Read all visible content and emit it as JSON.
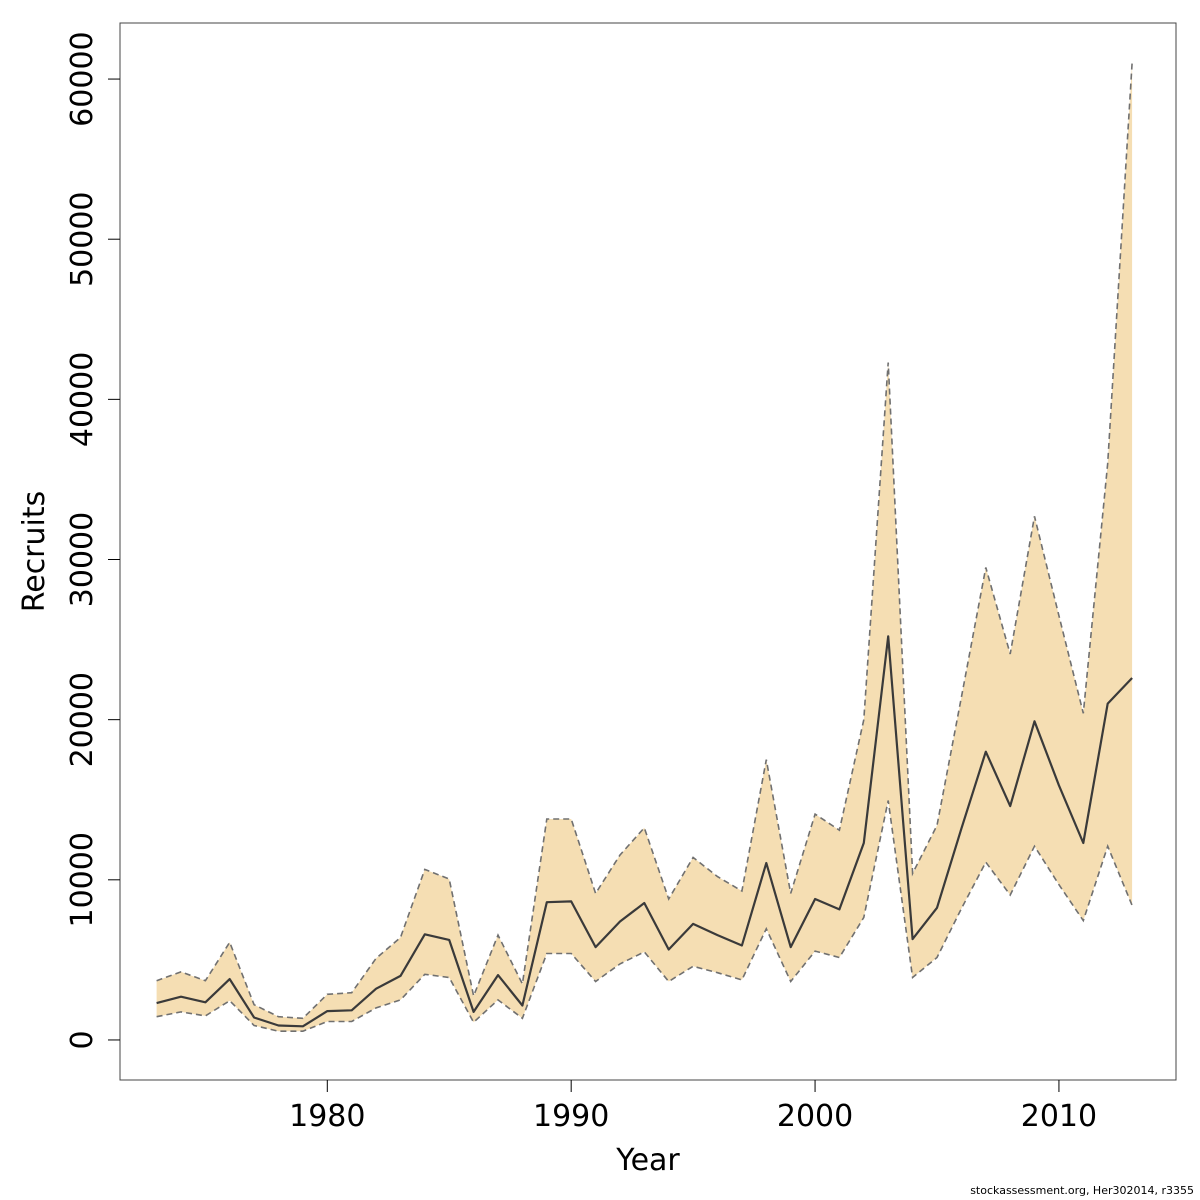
{
  "chart_data": {
    "type": "area",
    "title": "",
    "xlabel": "Year",
    "ylabel": "Recruits",
    "xlim": [
      1971.5,
      2014.8
    ],
    "ylim": [
      -2500,
      63500
    ],
    "xticks": [
      1980,
      1990,
      2000,
      2010
    ],
    "yticks": [
      0,
      10000,
      20000,
      30000,
      40000,
      50000,
      60000
    ],
    "colors": {
      "band": "#F5DEB3",
      "line": "#3a3a3a",
      "bound": "#707070",
      "frame": "#444444"
    },
    "x": [
      1973,
      1974,
      1975,
      1976,
      1977,
      1978,
      1979,
      1980,
      1981,
      1982,
      1983,
      1984,
      1985,
      1986,
      1987,
      1988,
      1989,
      1990,
      1991,
      1992,
      1993,
      1994,
      1995,
      1996,
      1997,
      1998,
      1999,
      2000,
      2001,
      2002,
      2003,
      2004,
      2005,
      2006,
      2007,
      2008,
      2009,
      2010,
      2011,
      2012,
      2013
    ],
    "series": [
      {
        "name": "Recruits",
        "values": [
          2300,
          2700,
          2350,
          3800,
          1400,
          900,
          850,
          1800,
          1850,
          3200,
          4000,
          6600,
          6250,
          1750,
          4050,
          2150,
          8600,
          8650,
          5800,
          7400,
          8550,
          5650,
          7250,
          6550,
          5900,
          11050,
          5800,
          8800,
          8150,
          12300,
          25200,
          6300,
          8250,
          13200,
          18000,
          14600,
          19900,
          15900,
          12300,
          21000,
          22600
        ]
      },
      {
        "name": "Upper bound",
        "values": [
          3700,
          4250,
          3700,
          6100,
          2200,
          1450,
          1350,
          2850,
          2950,
          5100,
          6400,
          10650,
          10050,
          2750,
          6550,
          3500,
          13800,
          13800,
          9150,
          11550,
          13250,
          8800,
          11400,
          10200,
          9300,
          17500,
          9150,
          14100,
          13100,
          20000,
          42300,
          10400,
          13400,
          21400,
          29500,
          24100,
          32700,
          26500,
          20400,
          36000,
          61000
        ]
      },
      {
        "name": "Lower bound",
        "values": [
          1450,
          1750,
          1500,
          2450,
          900,
          550,
          550,
          1150,
          1150,
          2000,
          2500,
          4100,
          3900,
          1100,
          2500,
          1350,
          5400,
          5400,
          3650,
          4750,
          5500,
          3650,
          4600,
          4200,
          3750,
          6950,
          3650,
          5550,
          5150,
          7650,
          14950,
          3900,
          5150,
          8200,
          11100,
          9050,
          12100,
          9700,
          7450,
          12100,
          8400
        ]
      }
    ]
  },
  "credit": "stockassessment.org, Her302014, r3355"
}
